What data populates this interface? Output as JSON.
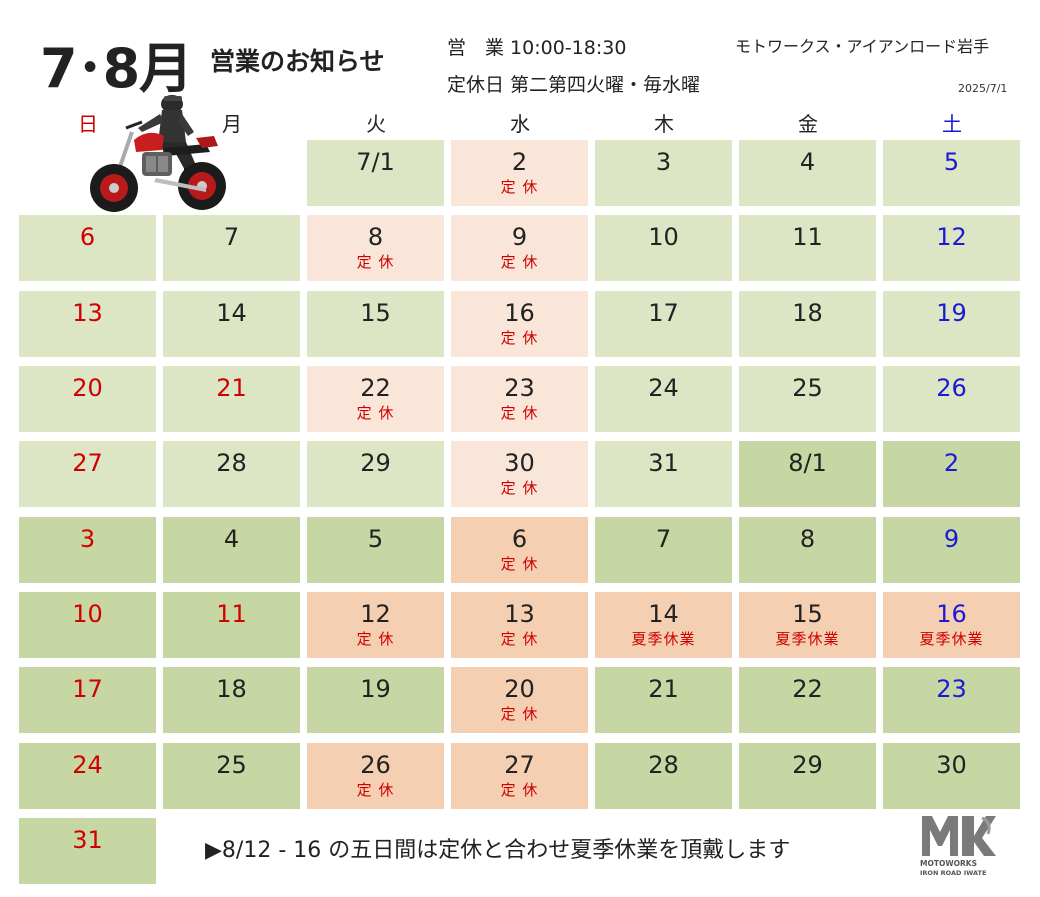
{
  "header": {
    "title_months": "7･8月",
    "title_sub": "営業のお知らせ",
    "hours": "営　業 10:00-18:30",
    "closed_days": "定休日 第二第四火曜・毎水曜",
    "shop_name": "モトワークス・アイアンロード岩手",
    "issue_date": "2025/7/1"
  },
  "weekdays": [
    "日",
    "月",
    "火",
    "水",
    "木",
    "金",
    "土"
  ],
  "colors": {
    "sunday": "#d00000",
    "saturday": "#1a1ad6",
    "july_cell": "#dce6c5",
    "august_cell": "#c7d7a3",
    "july_closed": "#f9e6d9",
    "august_closed": "#f4cfb2"
  },
  "weeks": [
    [
      null,
      null,
      {
        "day": "7/1",
        "note": "",
        "kind": "jul"
      },
      {
        "day": "2",
        "note": "定 休",
        "kind": "jul-closed"
      },
      {
        "day": "3",
        "note": "",
        "kind": "jul"
      },
      {
        "day": "4",
        "note": "",
        "kind": "jul"
      },
      {
        "day": "5",
        "note": "",
        "kind": "jul",
        "color": "blue"
      }
    ],
    [
      {
        "day": "6",
        "note": "",
        "kind": "jul",
        "color": "red"
      },
      {
        "day": "7",
        "note": "",
        "kind": "jul"
      },
      {
        "day": "8",
        "note": "定 休",
        "kind": "jul-closed"
      },
      {
        "day": "9",
        "note": "定 休",
        "kind": "jul-closed"
      },
      {
        "day": "10",
        "note": "",
        "kind": "jul"
      },
      {
        "day": "11",
        "note": "",
        "kind": "jul"
      },
      {
        "day": "12",
        "note": "",
        "kind": "jul",
        "color": "blue"
      }
    ],
    [
      {
        "day": "13",
        "note": "",
        "kind": "jul",
        "color": "red"
      },
      {
        "day": "14",
        "note": "",
        "kind": "jul"
      },
      {
        "day": "15",
        "note": "",
        "kind": "jul"
      },
      {
        "day": "16",
        "note": "定 休",
        "kind": "jul-closed"
      },
      {
        "day": "17",
        "note": "",
        "kind": "jul"
      },
      {
        "day": "18",
        "note": "",
        "kind": "jul"
      },
      {
        "day": "19",
        "note": "",
        "kind": "jul",
        "color": "blue"
      }
    ],
    [
      {
        "day": "20",
        "note": "",
        "kind": "jul",
        "color": "red"
      },
      {
        "day": "21",
        "note": "",
        "kind": "jul",
        "color": "red"
      },
      {
        "day": "22",
        "note": "定 休",
        "kind": "jul-closed"
      },
      {
        "day": "23",
        "note": "定 休",
        "kind": "jul-closed"
      },
      {
        "day": "24",
        "note": "",
        "kind": "jul"
      },
      {
        "day": "25",
        "note": "",
        "kind": "jul"
      },
      {
        "day": "26",
        "note": "",
        "kind": "jul",
        "color": "blue"
      }
    ],
    [
      {
        "day": "27",
        "note": "",
        "kind": "jul",
        "color": "red"
      },
      {
        "day": "28",
        "note": "",
        "kind": "jul"
      },
      {
        "day": "29",
        "note": "",
        "kind": "jul"
      },
      {
        "day": "30",
        "note": "定 休",
        "kind": "jul-closed"
      },
      {
        "day": "31",
        "note": "",
        "kind": "jul"
      },
      {
        "day": "8/1",
        "note": "",
        "kind": "aug"
      },
      {
        "day": "2",
        "note": "",
        "kind": "aug",
        "color": "blue"
      }
    ],
    [
      {
        "day": "3",
        "note": "",
        "kind": "aug",
        "color": "red"
      },
      {
        "day": "4",
        "note": "",
        "kind": "aug"
      },
      {
        "day": "5",
        "note": "",
        "kind": "aug"
      },
      {
        "day": "6",
        "note": "定 休",
        "kind": "aug-closed"
      },
      {
        "day": "7",
        "note": "",
        "kind": "aug"
      },
      {
        "day": "8",
        "note": "",
        "kind": "aug"
      },
      {
        "day": "9",
        "note": "",
        "kind": "aug",
        "color": "blue"
      }
    ],
    [
      {
        "day": "10",
        "note": "",
        "kind": "aug",
        "color": "red"
      },
      {
        "day": "11",
        "note": "",
        "kind": "aug",
        "color": "red"
      },
      {
        "day": "12",
        "note": "定 休",
        "kind": "aug-closed"
      },
      {
        "day": "13",
        "note": "定 休",
        "kind": "aug-closed"
      },
      {
        "day": "14",
        "note": "夏季休業",
        "kind": "aug-closed"
      },
      {
        "day": "15",
        "note": "夏季休業",
        "kind": "aug-closed"
      },
      {
        "day": "16",
        "note": "夏季休業",
        "kind": "aug-closed",
        "color": "blue"
      }
    ],
    [
      {
        "day": "17",
        "note": "",
        "kind": "aug",
        "color": "red"
      },
      {
        "day": "18",
        "note": "",
        "kind": "aug"
      },
      {
        "day": "19",
        "note": "",
        "kind": "aug"
      },
      {
        "day": "20",
        "note": "定 休",
        "kind": "aug-closed"
      },
      {
        "day": "21",
        "note": "",
        "kind": "aug"
      },
      {
        "day": "22",
        "note": "",
        "kind": "aug"
      },
      {
        "day": "23",
        "note": "",
        "kind": "aug",
        "color": "blue"
      }
    ],
    [
      {
        "day": "24",
        "note": "",
        "kind": "aug",
        "color": "red"
      },
      {
        "day": "25",
        "note": "",
        "kind": "aug"
      },
      {
        "day": "26",
        "note": "定 休",
        "kind": "aug-closed"
      },
      {
        "day": "27",
        "note": "定 休",
        "kind": "aug-closed"
      },
      {
        "day": "28",
        "note": "",
        "kind": "aug"
      },
      {
        "day": "29",
        "note": "",
        "kind": "aug"
      },
      {
        "day": "30",
        "note": "",
        "kind": "aug"
      }
    ],
    [
      {
        "day": "31",
        "note": "",
        "kind": "aug",
        "color": "red"
      },
      null,
      null,
      null,
      null,
      null,
      null
    ]
  ],
  "footer": {
    "note": "▶8/12 - 16 の五日間は定休と合わせ夏季休業を頂戴します"
  },
  "logo": {
    "line1": "MOTOWORKS",
    "line2": "IRON ROAD IWATE"
  },
  "images": {
    "bike": "motorcycle-rider-image"
  }
}
